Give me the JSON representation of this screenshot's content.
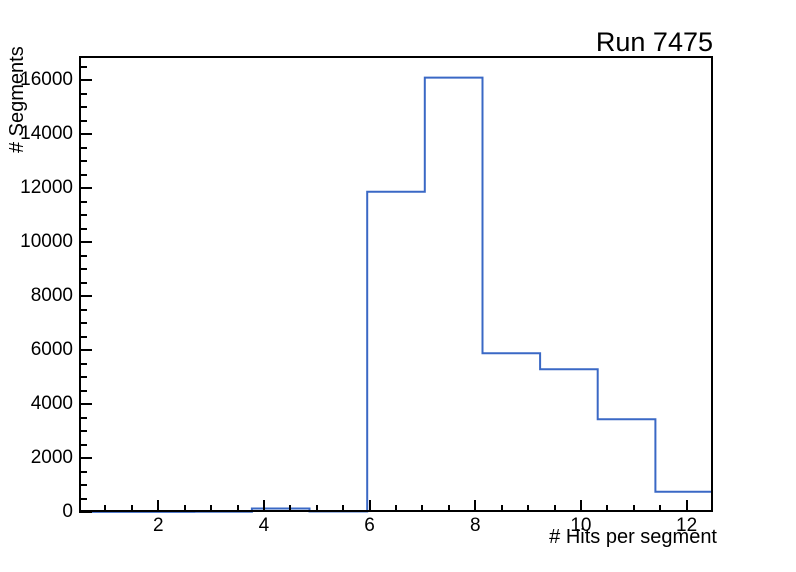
{
  "title": "Run 7475",
  "colors": {
    "line": "#3a68c5",
    "axis": "#000000",
    "text": "#000000",
    "background": "#ffffff"
  },
  "chart_data": {
    "type": "step-histogram",
    "title": "Run 7475",
    "xlabel": "# Hits per segment",
    "ylabel": "# Segments",
    "xlim": [
      0.5,
      12.5
    ],
    "ylim": [
      0,
      16900
    ],
    "grid": false,
    "legend": false,
    "n_bins": 11,
    "bin_edges": [
      0.5,
      1.5909,
      2.6818,
      3.7727,
      4.8636,
      5.9545,
      7.0455,
      8.1364,
      9.2273,
      10.3182,
      11.4091,
      12.5
    ],
    "counts": [
      2,
      4,
      8,
      130,
      20,
      11870,
      16100,
      5880,
      5290,
      3440,
      750
    ],
    "line_color": "#3a68c5",
    "x_axis": {
      "major_tick_values": [
        2,
        4,
        6,
        8,
        10,
        12
      ],
      "major_tick_labels": [
        "2",
        "4",
        "6",
        "8",
        "10",
        "12"
      ],
      "minor_tick_step": 0.5
    },
    "y_axis": {
      "major_tick_values": [
        0,
        2000,
        4000,
        6000,
        8000,
        10000,
        12000,
        14000,
        16000
      ],
      "major_tick_labels": [
        "0",
        "2000",
        "4000",
        "6000",
        "8000",
        "10000",
        "12000",
        "14000",
        "16000"
      ],
      "minor_tick_step": 500
    }
  }
}
